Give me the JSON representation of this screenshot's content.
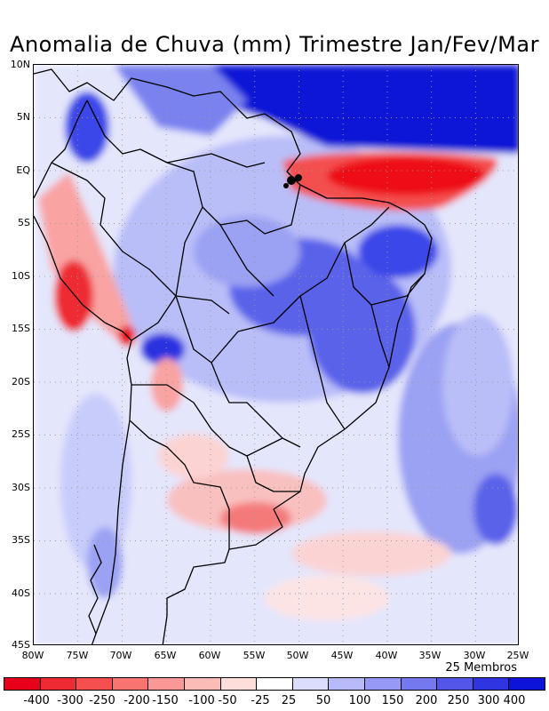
{
  "title": "Anomalia de Chuva (mm) Trimestre Jan/Fev/Mar",
  "members_label": "25 Membros",
  "lat_labels": [
    "10N",
    "5N",
    "EQ",
    "5S",
    "10S",
    "15S",
    "20S",
    "25S",
    "30S",
    "35S",
    "40S",
    "45S"
  ],
  "lon_labels": [
    "80W",
    "75W",
    "70W",
    "65W",
    "60W",
    "55W",
    "50W",
    "45W",
    "40W",
    "35W",
    "30W",
    "25W"
  ],
  "colorbar": {
    "colors": [
      "#e8001a",
      "#f02a33",
      "#f5504f",
      "#f77470",
      "#f99894",
      "#fbbcb8",
      "#fddedb",
      "#ffffff",
      "#dcdcfc",
      "#b8bafa",
      "#9699f5",
      "#7479f0",
      "#5257ea",
      "#3035e2",
      "#0c14da"
    ],
    "labels": [
      "-400",
      "-300",
      "-250",
      "-200",
      "-150",
      "-100",
      "-50",
      "-25",
      "25",
      "50",
      "100",
      "150",
      "200",
      "250",
      "300",
      "400"
    ]
  },
  "colors": {
    "strong_blue": "#0a14d6",
    "blue": "#3a46e8",
    "medium_blue": "#7a82f0",
    "light_blue": "#b9bdf8",
    "pale_blue": "#dcdffc",
    "strong_red": "#ee0a12",
    "red": "#f45050",
    "light_red": "#f9a3a3",
    "pale_red": "#fcd3d3"
  }
}
